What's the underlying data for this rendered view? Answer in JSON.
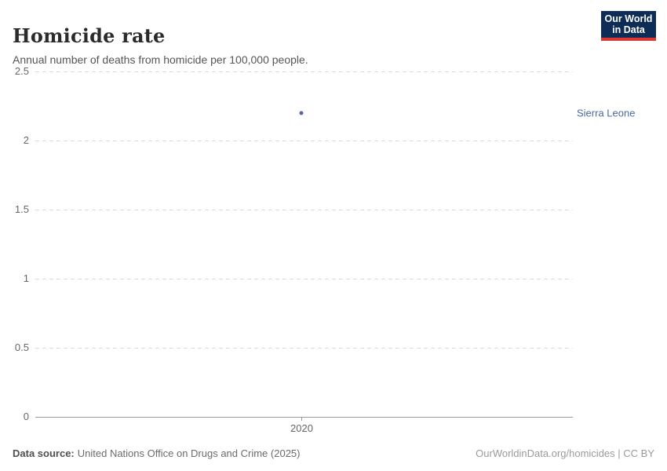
{
  "header": {
    "title": "Homicide rate",
    "subtitle": "Annual number of deaths from homicide per 100,000 people."
  },
  "logo": {
    "line1": "Our World",
    "line2": "in Data",
    "bg_color": "#0E2D56",
    "accent_color": "#DC3830",
    "text_color": "#FFFFFF"
  },
  "chart_data": {
    "type": "scatter",
    "title": "Homicide rate",
    "xlabel": "",
    "ylabel": "",
    "ylim": [
      0,
      2.5
    ],
    "yticks": [
      0,
      0.5,
      1,
      1.5,
      2,
      2.5
    ],
    "xticks": [
      2020
    ],
    "grid": true,
    "legend_position": "right-of-point",
    "series": [
      {
        "name": "Sierra Leone",
        "color": "#4C6A9C",
        "points": [
          {
            "x": 2020,
            "y": 2.2
          }
        ]
      }
    ],
    "entity_label": "Sierra Leone",
    "gridline_color": "#DBDBDB",
    "axis_line_color": "#999999",
    "tick_label_color": "#666666"
  },
  "footer": {
    "source_label": "Data source:",
    "source_text": "United Nations Office on Drugs and Crime (2025)",
    "rights": "OurWorldinData.org/homicides | CC BY"
  }
}
